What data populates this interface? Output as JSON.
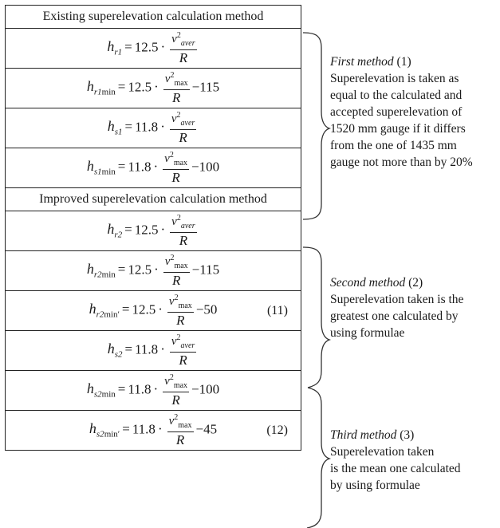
{
  "table": {
    "sections": [
      {
        "header": "Existing superelevation calculation method",
        "rows": [
          {
            "lhs_main": "h",
            "lhs_sub": "r1",
            "lhs_sub_tail": "",
            "rel": "=",
            "coef": "12.5",
            "dot": "·",
            "num_v": "v",
            "num_sup": "2",
            "num_sub": "aver",
            "num_sub_italic": true,
            "den": "R",
            "tail": "",
            "tag": ""
          },
          {
            "lhs_main": "h",
            "lhs_sub": "r1",
            "lhs_sub_tail": "min",
            "rel": "=",
            "coef": "12.5",
            "dot": "·",
            "num_v": "v",
            "num_sup": "2",
            "num_sub": "max",
            "num_sub_italic": false,
            "den": "R",
            "tail": "−115",
            "tag": ""
          },
          {
            "lhs_main": "h",
            "lhs_sub": "s1",
            "lhs_sub_tail": "",
            "rel": "=",
            "coef": "11.8",
            "dot": "·",
            "num_v": "v",
            "num_sup": "2",
            "num_sub": "aver",
            "num_sub_italic": true,
            "den": "R",
            "tail": "",
            "tag": ""
          },
          {
            "lhs_main": "h",
            "lhs_sub": "s1",
            "lhs_sub_tail": "min",
            "rel": "=",
            "coef": "11.8",
            "dot": "·",
            "num_v": "v",
            "num_sup": "2",
            "num_sub": "max",
            "num_sub_italic": false,
            "den": "R",
            "tail": "−100",
            "tag": ""
          }
        ]
      },
      {
        "header": "Improved superelevation calculation method",
        "rows": [
          {
            "lhs_main": "h",
            "lhs_sub": "r2",
            "lhs_sub_tail": "",
            "rel": "=",
            "coef": "12.5",
            "dot": "·",
            "num_v": "v",
            "num_sup": "2",
            "num_sub": "aver",
            "num_sub_italic": true,
            "den": "R",
            "tail": "",
            "tag": ""
          },
          {
            "lhs_main": "h",
            "lhs_sub": "r2",
            "lhs_sub_tail": "min",
            "rel": "=",
            "coef": "12.5",
            "dot": "·",
            "num_v": "v",
            "num_sup": "2",
            "num_sub": "max",
            "num_sub_italic": false,
            "den": "R",
            "tail": "−115",
            "tag": ""
          },
          {
            "lhs_main": "h",
            "lhs_sub": "r2",
            "lhs_sub_tail": "min′",
            "rel": "=",
            "coef": "12.5",
            "dot": "·",
            "num_v": "v",
            "num_sup": "2",
            "num_sub": "max",
            "num_sub_italic": false,
            "den": "R",
            "tail": "−50",
            "tag": "(11)"
          },
          {
            "lhs_main": "h",
            "lhs_sub": "s2",
            "lhs_sub_tail": "",
            "rel": "=",
            "coef": "11.8",
            "dot": "·",
            "num_v": "v",
            "num_sup": "2",
            "num_sub": "aver",
            "num_sub_italic": true,
            "den": "R",
            "tail": "",
            "tag": ""
          },
          {
            "lhs_main": "h",
            "lhs_sub": "s2",
            "lhs_sub_tail": "min",
            "rel": "=",
            "coef": "11.8",
            "dot": "·",
            "num_v": "v",
            "num_sup": "2",
            "num_sub": "max",
            "num_sub_italic": false,
            "den": "R",
            "tail": "−100",
            "tag": ""
          },
          {
            "lhs_main": "h",
            "lhs_sub": "s2",
            "lhs_sub_tail": "min′",
            "rel": "=",
            "coef": "11.8",
            "dot": "·",
            "num_v": "v",
            "num_sup": "2",
            "num_sub": "max",
            "num_sub_italic": false,
            "den": "R",
            "tail": "−45",
            "tag": "(12)"
          }
        ]
      }
    ]
  },
  "notes": [
    {
      "title": "First method",
      "number": " (1)",
      "lines": [
        "Superelevation is taken as",
        "equal to the calculated and",
        "accepted superelevation of",
        "1520 mm gauge if it differs",
        "from the one of 1435 mm",
        "gauge not more than by 20%"
      ]
    },
    {
      "title": "Second method",
      "number": " (2)",
      "lines": [
        "Superelevation taken is the",
        "greatest one calculated by",
        "using formulae"
      ]
    },
    {
      "title": "Third method",
      "number": " (3)",
      "lines": [
        "Superelevation taken",
        "is the mean one calculated",
        "by using formulae"
      ]
    }
  ]
}
